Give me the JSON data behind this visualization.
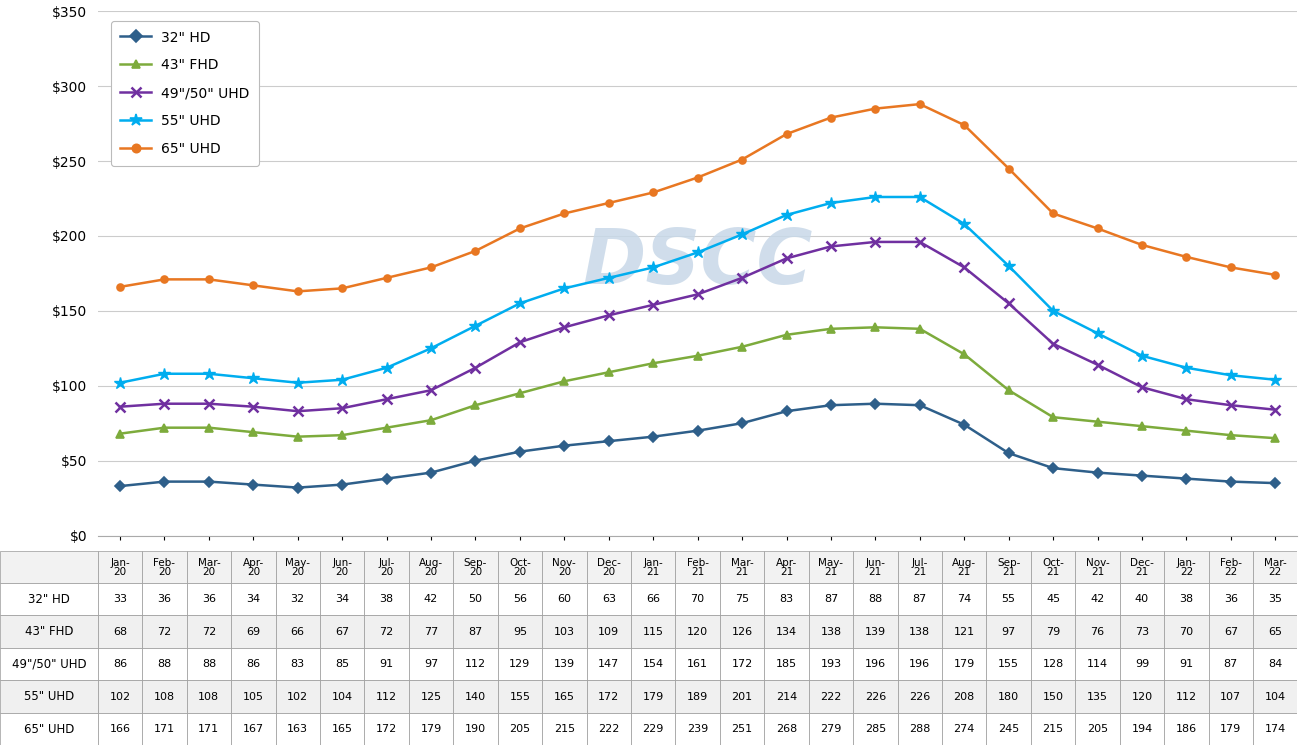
{
  "months_top": [
    "Jan-",
    "Feb-",
    "Mar-",
    "Apr-",
    "May-",
    "Jun-",
    "Jul-",
    "Aug-",
    "Sep-",
    "Oct-",
    "Nov-",
    "Dec-",
    "Jan-",
    "Feb-",
    "Mar-",
    "Apr-",
    "May-",
    "Jun-",
    "Jul-",
    "Aug-",
    "Sep-",
    "Oct-",
    "Nov-",
    "Dec-",
    "Jan-",
    "Feb-",
    "Mar-"
  ],
  "months_bot": [
    "20",
    "20",
    "20",
    "20",
    "20",
    "20",
    "20",
    "20",
    "20",
    "20",
    "20",
    "20",
    "21",
    "21",
    "21",
    "21",
    "21",
    "21",
    "21",
    "21",
    "21",
    "21",
    "21",
    "21",
    "22",
    "22",
    "22"
  ],
  "series_names": [
    "32\" HD",
    "43\" FHD",
    "49\"/50\" UHD",
    "55\" UHD",
    "65\" UHD"
  ],
  "series": {
    "32\" HD": [
      33,
      36,
      36,
      34,
      32,
      34,
      38,
      42,
      50,
      56,
      60,
      63,
      66,
      70,
      75,
      83,
      87,
      88,
      87,
      74,
      55,
      45,
      42,
      40,
      38,
      36,
      35
    ],
    "43\" FHD": [
      68,
      72,
      72,
      69,
      66,
      67,
      72,
      77,
      87,
      95,
      103,
      109,
      115,
      120,
      126,
      134,
      138,
      139,
      138,
      121,
      97,
      79,
      76,
      73,
      70,
      67,
      65
    ],
    "49\"/50\" UHD": [
      86,
      88,
      88,
      86,
      83,
      85,
      91,
      97,
      112,
      129,
      139,
      147,
      154,
      161,
      172,
      185,
      193,
      196,
      196,
      179,
      155,
      128,
      114,
      99,
      91,
      87,
      84
    ],
    "55\" UHD": [
      102,
      108,
      108,
      105,
      102,
      104,
      112,
      125,
      140,
      155,
      165,
      172,
      179,
      189,
      201,
      214,
      222,
      226,
      226,
      208,
      180,
      150,
      135,
      120,
      112,
      107,
      104
    ],
    "65\" UHD": [
      166,
      171,
      171,
      167,
      163,
      165,
      172,
      179,
      190,
      205,
      215,
      222,
      229,
      239,
      251,
      268,
      279,
      285,
      288,
      274,
      245,
      215,
      205,
      194,
      186,
      179,
      174
    ]
  },
  "colors": {
    "32\" HD": "#2e5f8a",
    "43\" FHD": "#7dab3c",
    "49\"/50\" UHD": "#7030a0",
    "55\" UHD": "#00adef",
    "65\" UHD": "#e87722"
  },
  "markers": {
    "32\" HD": "D",
    "43\" FHD": "^",
    "49\"/50\" UHD": "x",
    "55\" UHD": "*",
    "65\" UHD": "o"
  },
  "ylim": [
    0,
    350
  ],
  "yticks": [
    0,
    50,
    100,
    150,
    200,
    250,
    300,
    350
  ],
  "watermark": "DSCC",
  "row_labels": [
    "32\" HD",
    "43\" FHD",
    "49\"/50\" UHD",
    "55\" UHD",
    "65\" UHD"
  ],
  "table_header_bg": "#f2f2f2",
  "table_alt_bg": "#f2f2f2",
  "table_white_bg": "#ffffff",
  "table_border": "#999999"
}
